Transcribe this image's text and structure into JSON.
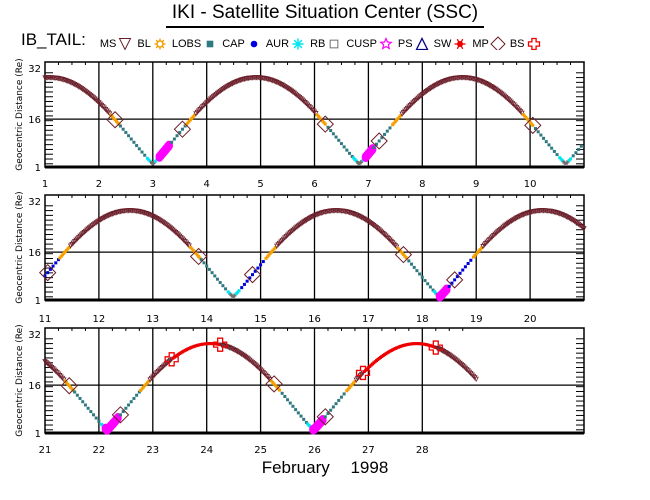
{
  "header": {
    "title": "IKI - Satellite Situation Center (SSC)",
    "satellite": "IB_TAIL:"
  },
  "legend": [
    {
      "label": "MS",
      "marker": "triangle-down",
      "color": "#6b1f2a"
    },
    {
      "label": "BL",
      "marker": "sun",
      "color": "#f5a000"
    },
    {
      "label": "LOBS",
      "marker": "square-filled",
      "color": "#2e7a80"
    },
    {
      "label": "CAP",
      "marker": "circle-filled",
      "color": "#0000dd"
    },
    {
      "label": "AUR",
      "marker": "asterisk",
      "color": "#00e5ee"
    },
    {
      "label": "RB",
      "marker": "square-open",
      "color": "#707070"
    },
    {
      "label": "CUSP",
      "marker": "star-open",
      "color": "#ff00ff"
    },
    {
      "label": "PS",
      "marker": "triangle-up-open",
      "color": "#000080"
    },
    {
      "label": "SW",
      "marker": "splat",
      "color": "#ee0000"
    },
    {
      "label": "MP",
      "marker": "diamond-open",
      "color": "#6b1f2a"
    },
    {
      "label": "BS",
      "marker": "cross-open",
      "color": "#ee0000"
    }
  ],
  "footer": {
    "month": "February",
    "year": "1998"
  },
  "chart_data": {
    "type": "scatter",
    "title": "IKI - Satellite Situation Center (SSC)",
    "ylabel": "Geocentric Distance (Re)",
    "xlabel": "February 1998",
    "ylim": [
      1,
      32
    ],
    "yticks": [
      "1",
      "16",
      "32"
    ],
    "grid": true,
    "orbit": {
      "apogee_re": 29,
      "perigee_re": 2,
      "period_days": 3.83,
      "first_perigee_day": 3.0
    },
    "panels": [
      {
        "xlim": [
          1,
          11
        ],
        "xticks": [
          "1",
          "2",
          "3",
          "4",
          "5",
          "6",
          "7",
          "8",
          "9",
          "10"
        ],
        "bow_shock_crossings": [
          2.3,
          3.55,
          6.2,
          7.2,
          10.05
        ],
        "magnetopause_crossings": [],
        "cusp_intervals": [
          [
            3.1,
            3.3
          ],
          [
            6.95,
            7.1
          ]
        ]
      },
      {
        "xlim": [
          11,
          21
        ],
        "xticks": [
          "11",
          "12",
          "13",
          "14",
          "15",
          "16",
          "17",
          "18",
          "19",
          "20"
        ],
        "bow_shock_crossings": [
          11.05,
          13.85,
          14.85,
          17.65,
          18.6
        ],
        "magnetopause_crossings": [],
        "cusp_intervals": [
          [
            18.3,
            18.45
          ]
        ]
      },
      {
        "xlim": [
          21,
          29
        ],
        "xticks": [
          "21",
          "22",
          "23",
          "24",
          "25",
          "26",
          "27",
          "28"
        ],
        "bow_shock_crossings": [
          21.45,
          22.4,
          25.25,
          26.2
        ],
        "magnetopause_crossings": [
          23.35,
          24.25,
          26.9,
          28.25
        ],
        "solar_wind_intervals": [
          [
            23.35,
            24.25
          ],
          [
            26.9,
            28.25
          ]
        ],
        "cusp_intervals": [
          [
            22.1,
            22.35
          ],
          [
            25.95,
            26.15
          ]
        ]
      }
    ]
  }
}
